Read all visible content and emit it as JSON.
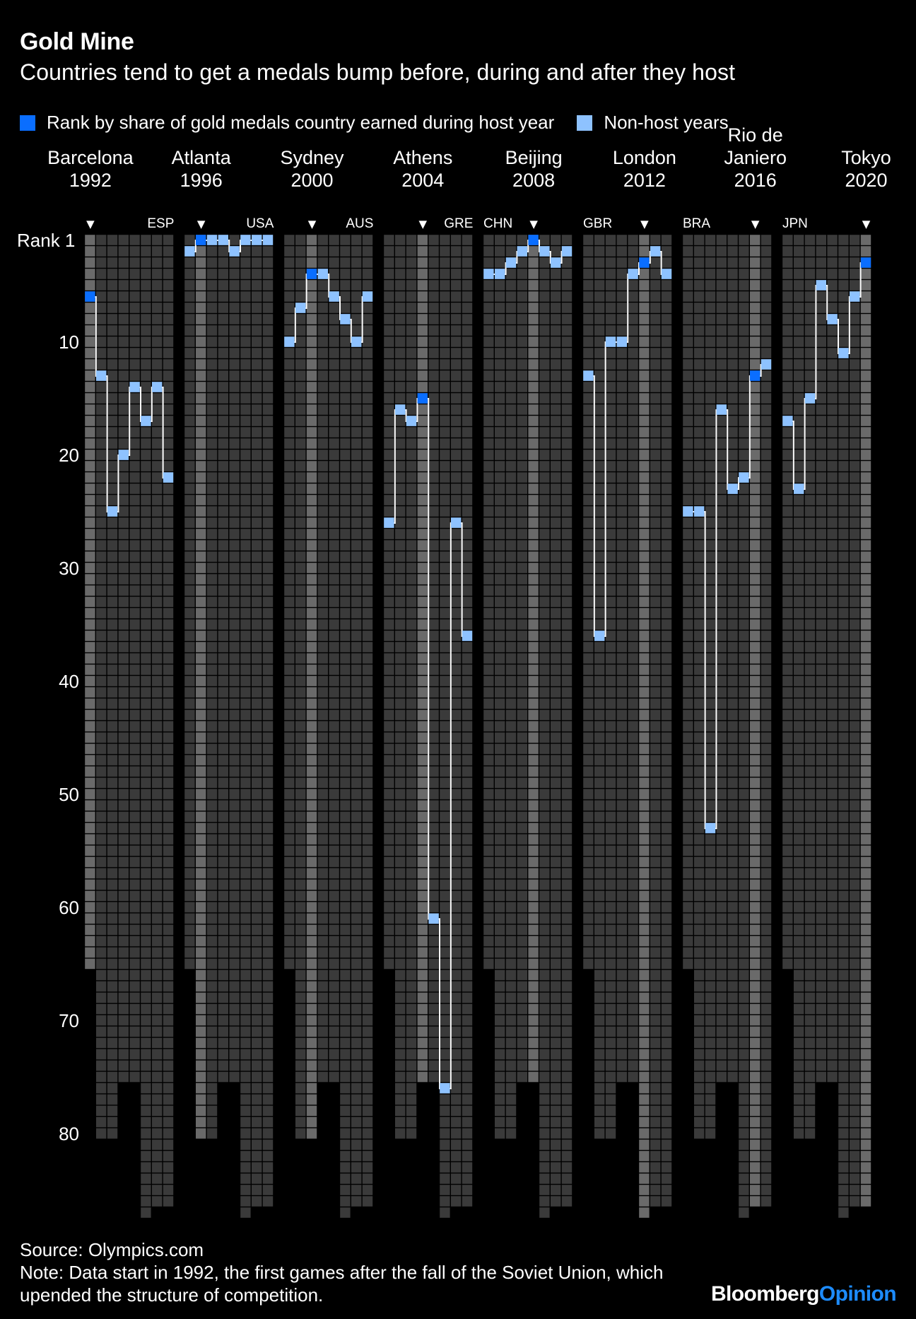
{
  "title": "Gold Mine",
  "subtitle": "Countries tend to get a medals bump before, during and after they host",
  "legend": {
    "host": {
      "label": "Rank by share of gold medals country earned during host year",
      "color": "#0A6EFF"
    },
    "nonhost": {
      "label": "Non-host years",
      "color": "#8EC2FF"
    }
  },
  "footer": {
    "source": "Source: Olympics.com",
    "note_line1": "Note: Data start in 1992, the first games after the fall of the Soviet Union, which",
    "note_line2": "upended the structure of competition."
  },
  "brand": {
    "part1": "Bloomberg",
    "part2": "Opinion",
    "part2_color": "#1D8CFF"
  },
  "chart_data": {
    "type": "heatmap",
    "ylabel": "Rank",
    "y_tick_labels": [
      {
        "value": 1,
        "label": "Rank 1"
      },
      {
        "value": 10,
        "label": "10"
      },
      {
        "value": 20,
        "label": "20"
      },
      {
        "value": 30,
        "label": "30"
      },
      {
        "value": 40,
        "label": "40"
      },
      {
        "value": 50,
        "label": "50"
      },
      {
        "value": 60,
        "label": "60"
      },
      {
        "value": 70,
        "label": "70"
      },
      {
        "value": 80,
        "label": "80"
      }
    ],
    "ylim": [
      1,
      87
    ],
    "games": [
      "1992",
      "1996",
      "2000",
      "2004",
      "2008",
      "2012",
      "2016",
      "2020"
    ],
    "countries_per_games": [
      65,
      80,
      80,
      75,
      75,
      87,
      86,
      86
    ],
    "marker_glyph": "▼",
    "colors": {
      "cell": "#3A3A3A",
      "host_column": "#6A6A6A",
      "line": "#FFFFFF"
    },
    "panels": [
      {
        "host": "Barcelona",
        "year": "1992",
        "country": "ESP",
        "host_index": 0,
        "ranks": [
          6,
          13,
          25,
          20,
          14,
          17,
          14,
          22
        ]
      },
      {
        "host": "Atlanta",
        "year": "1996",
        "country": "USA",
        "host_index": 1,
        "ranks": [
          2,
          1,
          1,
          1,
          2,
          1,
          1,
          1
        ]
      },
      {
        "host": "Sydney",
        "year": "2000",
        "country": "AUS",
        "host_index": 2,
        "ranks": [
          10,
          7,
          4,
          4,
          6,
          8,
          10,
          6
        ]
      },
      {
        "host": "Athens",
        "year": "2004",
        "country": "GRE",
        "host_index": 3,
        "ranks": [
          26,
          16,
          17,
          15,
          61,
          76,
          26,
          36
        ]
      },
      {
        "host": "Beijing",
        "year": "2008",
        "country": "CHN",
        "host_index": 4,
        "ranks": [
          4,
          4,
          3,
          2,
          1,
          2,
          3,
          2
        ]
      },
      {
        "host": "London",
        "year": "2012",
        "country": "GBR",
        "host_index": 5,
        "ranks": [
          13,
          36,
          10,
          10,
          4,
          3,
          2,
          4
        ]
      },
      {
        "host": "Rio de Janiero",
        "year": "2016",
        "country": "BRA",
        "host_index": 6,
        "ranks": [
          25,
          25,
          53,
          16,
          23,
          22,
          13,
          12
        ]
      },
      {
        "host": "Tokyo",
        "year": "2020",
        "country": "JPN",
        "host_index": 7,
        "ranks": [
          17,
          23,
          15,
          5,
          8,
          11,
          6,
          3
        ]
      }
    ]
  }
}
